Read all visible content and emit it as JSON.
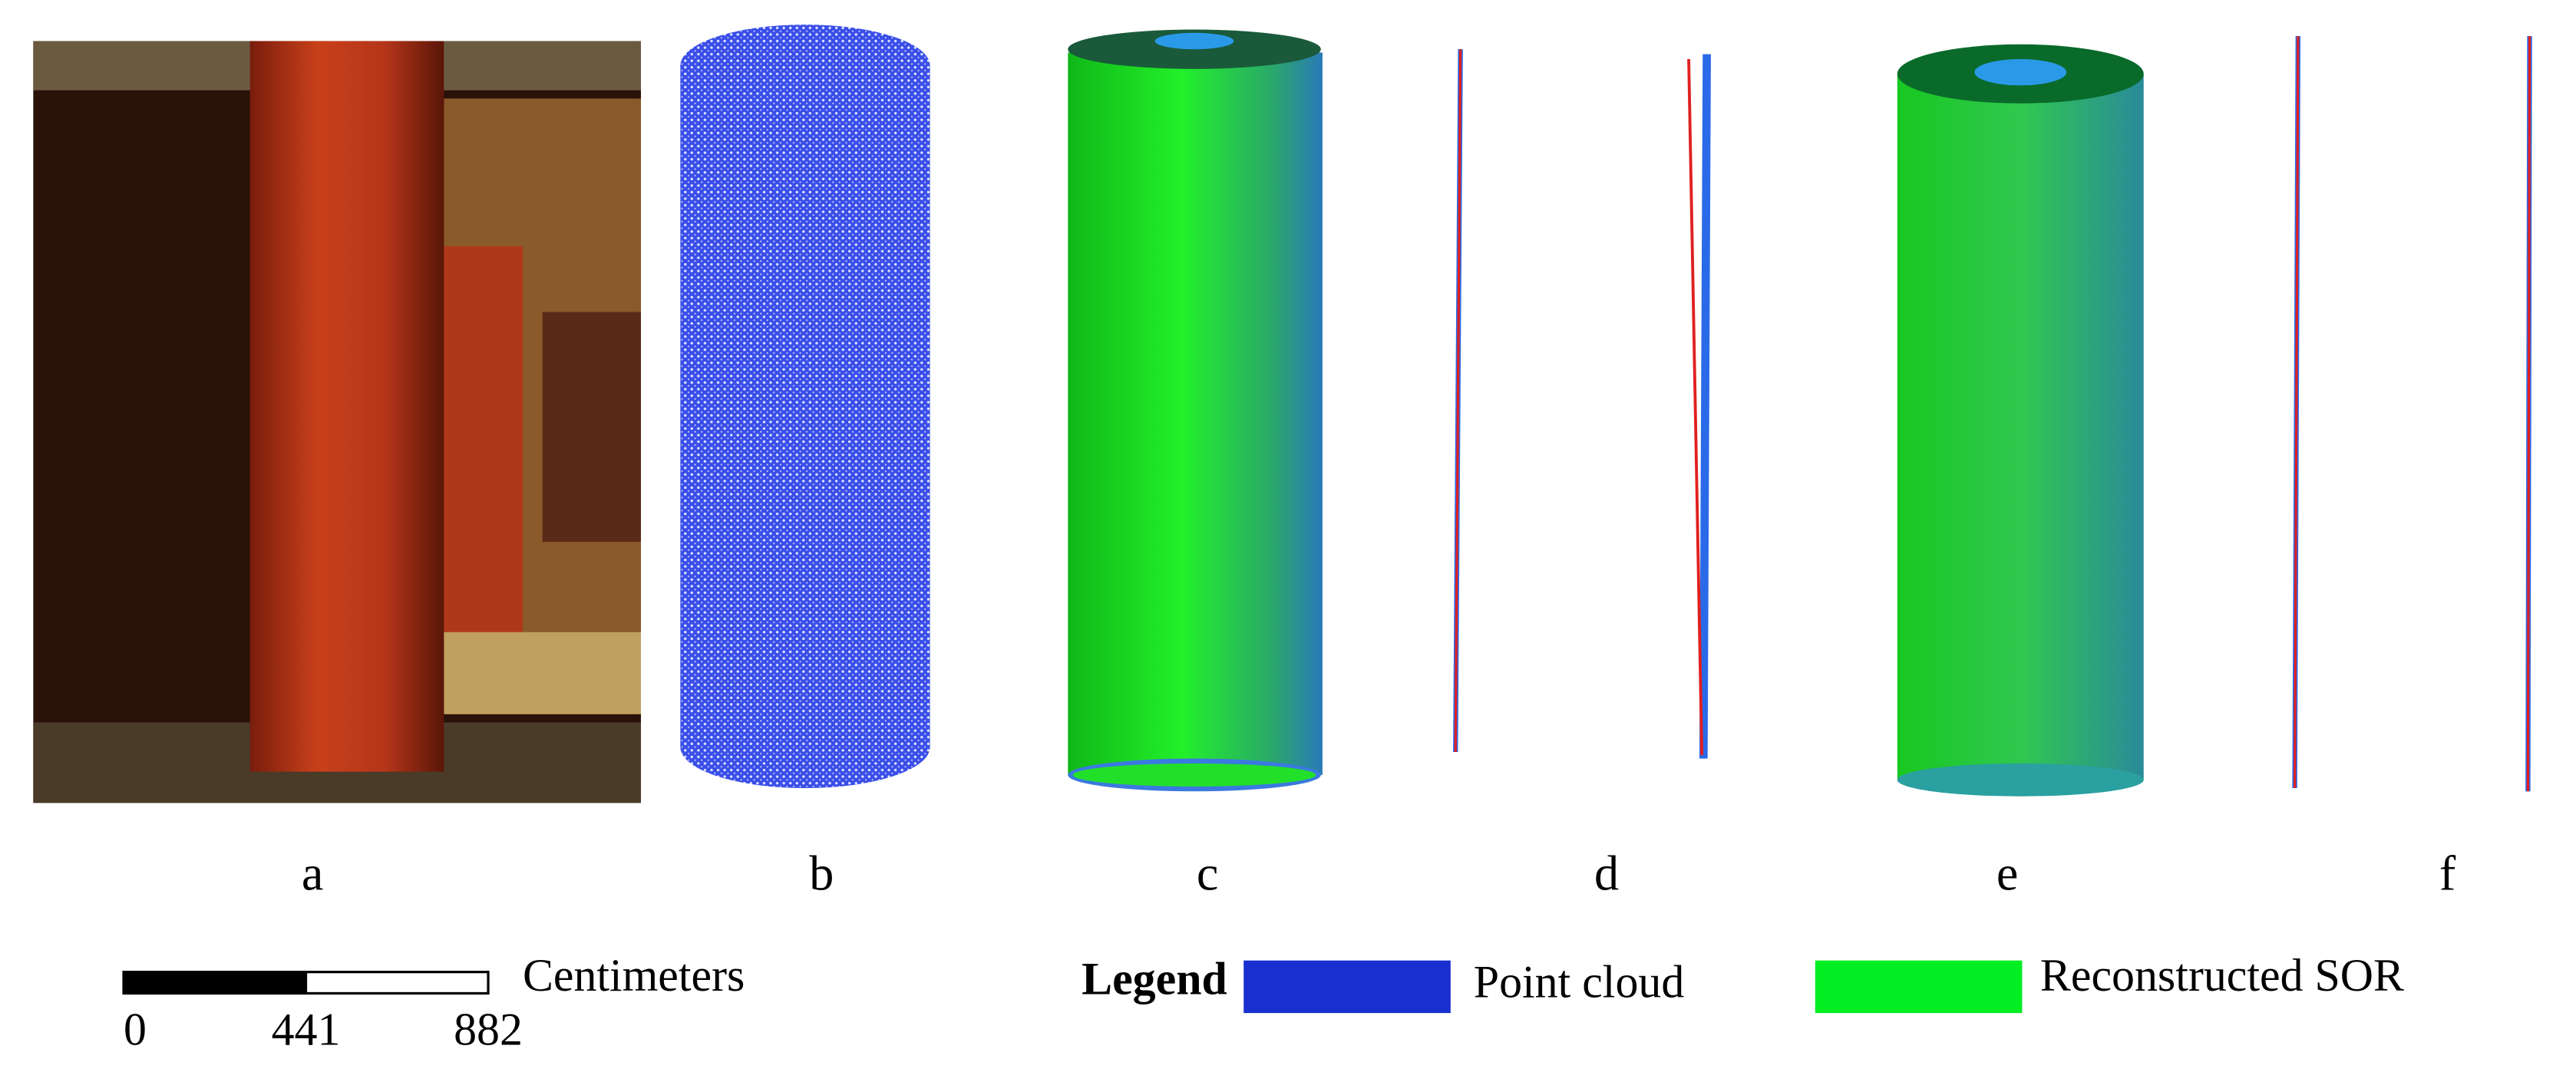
{
  "panels": {
    "labels": [
      "a",
      "b",
      "c",
      "d",
      "e",
      "f"
    ]
  },
  "scale_bar": {
    "ticks": [
      0,
      441,
      882
    ],
    "unit": "Centimeters"
  },
  "legend": {
    "title": "Legend",
    "items": [
      {
        "name": "Point cloud",
        "color": "#1a2fd0"
      },
      {
        "name": "Reconstructed SOR",
        "color": "#00ee22"
      }
    ]
  }
}
